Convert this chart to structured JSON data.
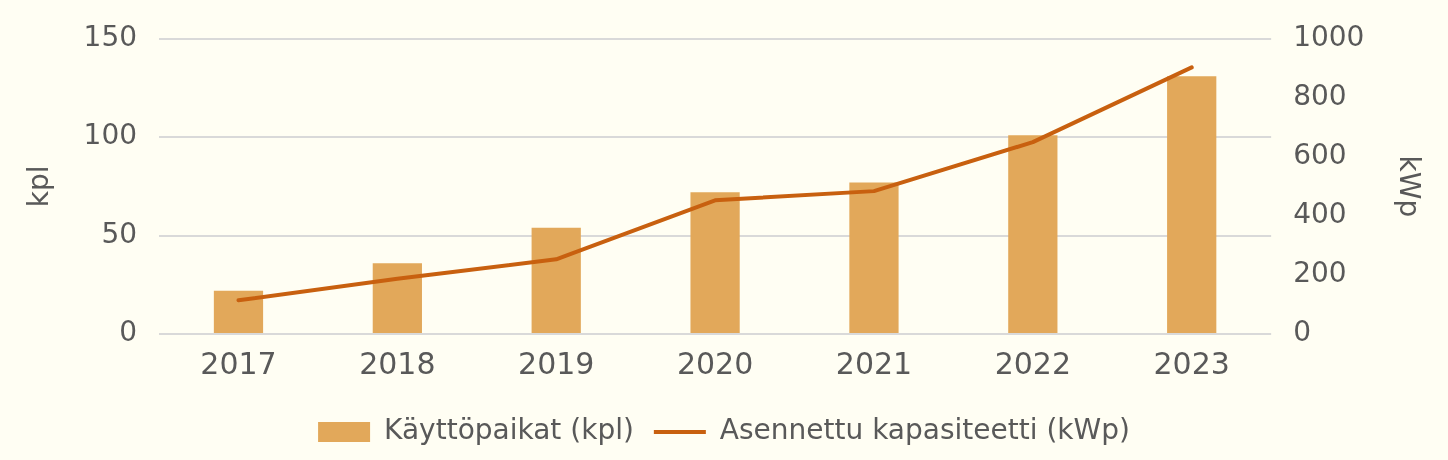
{
  "chart_data": {
    "type": "bar",
    "categories": [
      "2017",
      "2018",
      "2019",
      "2020",
      "2021",
      "2022",
      "2023"
    ],
    "series": [
      {
        "name": "Käyttöpaikat (kpl)",
        "color": "#e2a85a",
        "values": [
          22,
          36,
          54,
          72,
          77,
          101,
          131
        ]
      },
      {
        "name": "Asennettu kapasiteetti (kWp)",
        "type": "line",
        "axis": "y2",
        "color": "#c8600f",
        "marker": "none",
        "values": [
          114,
          187,
          253,
          453,
          484,
          650,
          903
        ]
      }
    ],
    "ylabel": "kpl",
    "y2label": "kWp",
    "ylim": [
      0,
      150
    ],
    "yticks": [
      0,
      50,
      100,
      150
    ],
    "y2lim": [
      0,
      1000
    ],
    "y2ticks": [
      0,
      200,
      400,
      600,
      800,
      1000
    ],
    "grid": "y",
    "legend": "bottom"
  }
}
